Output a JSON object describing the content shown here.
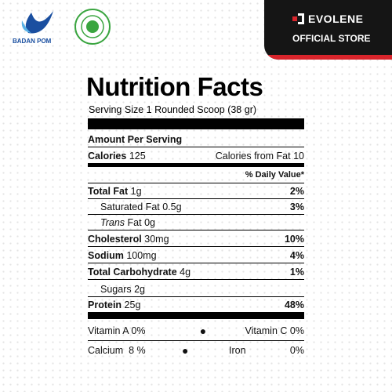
{
  "header": {
    "badan_pom": "BADAN POM",
    "brand": "EVOLENE",
    "store": "OFFICIAL STORE"
  },
  "label": {
    "title": "Nutrition Facts",
    "serving": "Serving Size 1 Rounded Scoop (38 gr)",
    "amount_per_serving": "Amount Per Serving",
    "calories": {
      "label": "Calories",
      "value": "125"
    },
    "calories_from_fat": {
      "label": "Calories from Fat",
      "value": "10"
    },
    "daily_value_header": "% Daily Value*",
    "nutrients": [
      {
        "name": "Total Fat",
        "amount": "1g",
        "dv": "2%"
      },
      {
        "name": "Saturated Fat",
        "amount": "0.5g",
        "dv": "3%"
      },
      {
        "name_italic": "Trans",
        "name": "Fat",
        "amount": "0g"
      },
      {
        "name": "Cholesterol",
        "amount": "30mg",
        "dv": "10%"
      },
      {
        "name": "Sodium",
        "amount": "100mg",
        "dv": "4%"
      },
      {
        "name": "Total Carbohydrate",
        "amount": "4g",
        "dv": "1%"
      },
      {
        "name": "Sugars",
        "amount": "2g"
      },
      {
        "name": "Protein",
        "amount": "25g",
        "dv": "48%"
      }
    ],
    "vitamins": [
      {
        "name": "Vitamin A",
        "value": "0%"
      },
      {
        "name": "Vitamin C",
        "value": "0%"
      },
      {
        "name": "Calcium",
        "value": "8 %"
      },
      {
        "name": "Iron",
        "value": "0%"
      }
    ]
  }
}
